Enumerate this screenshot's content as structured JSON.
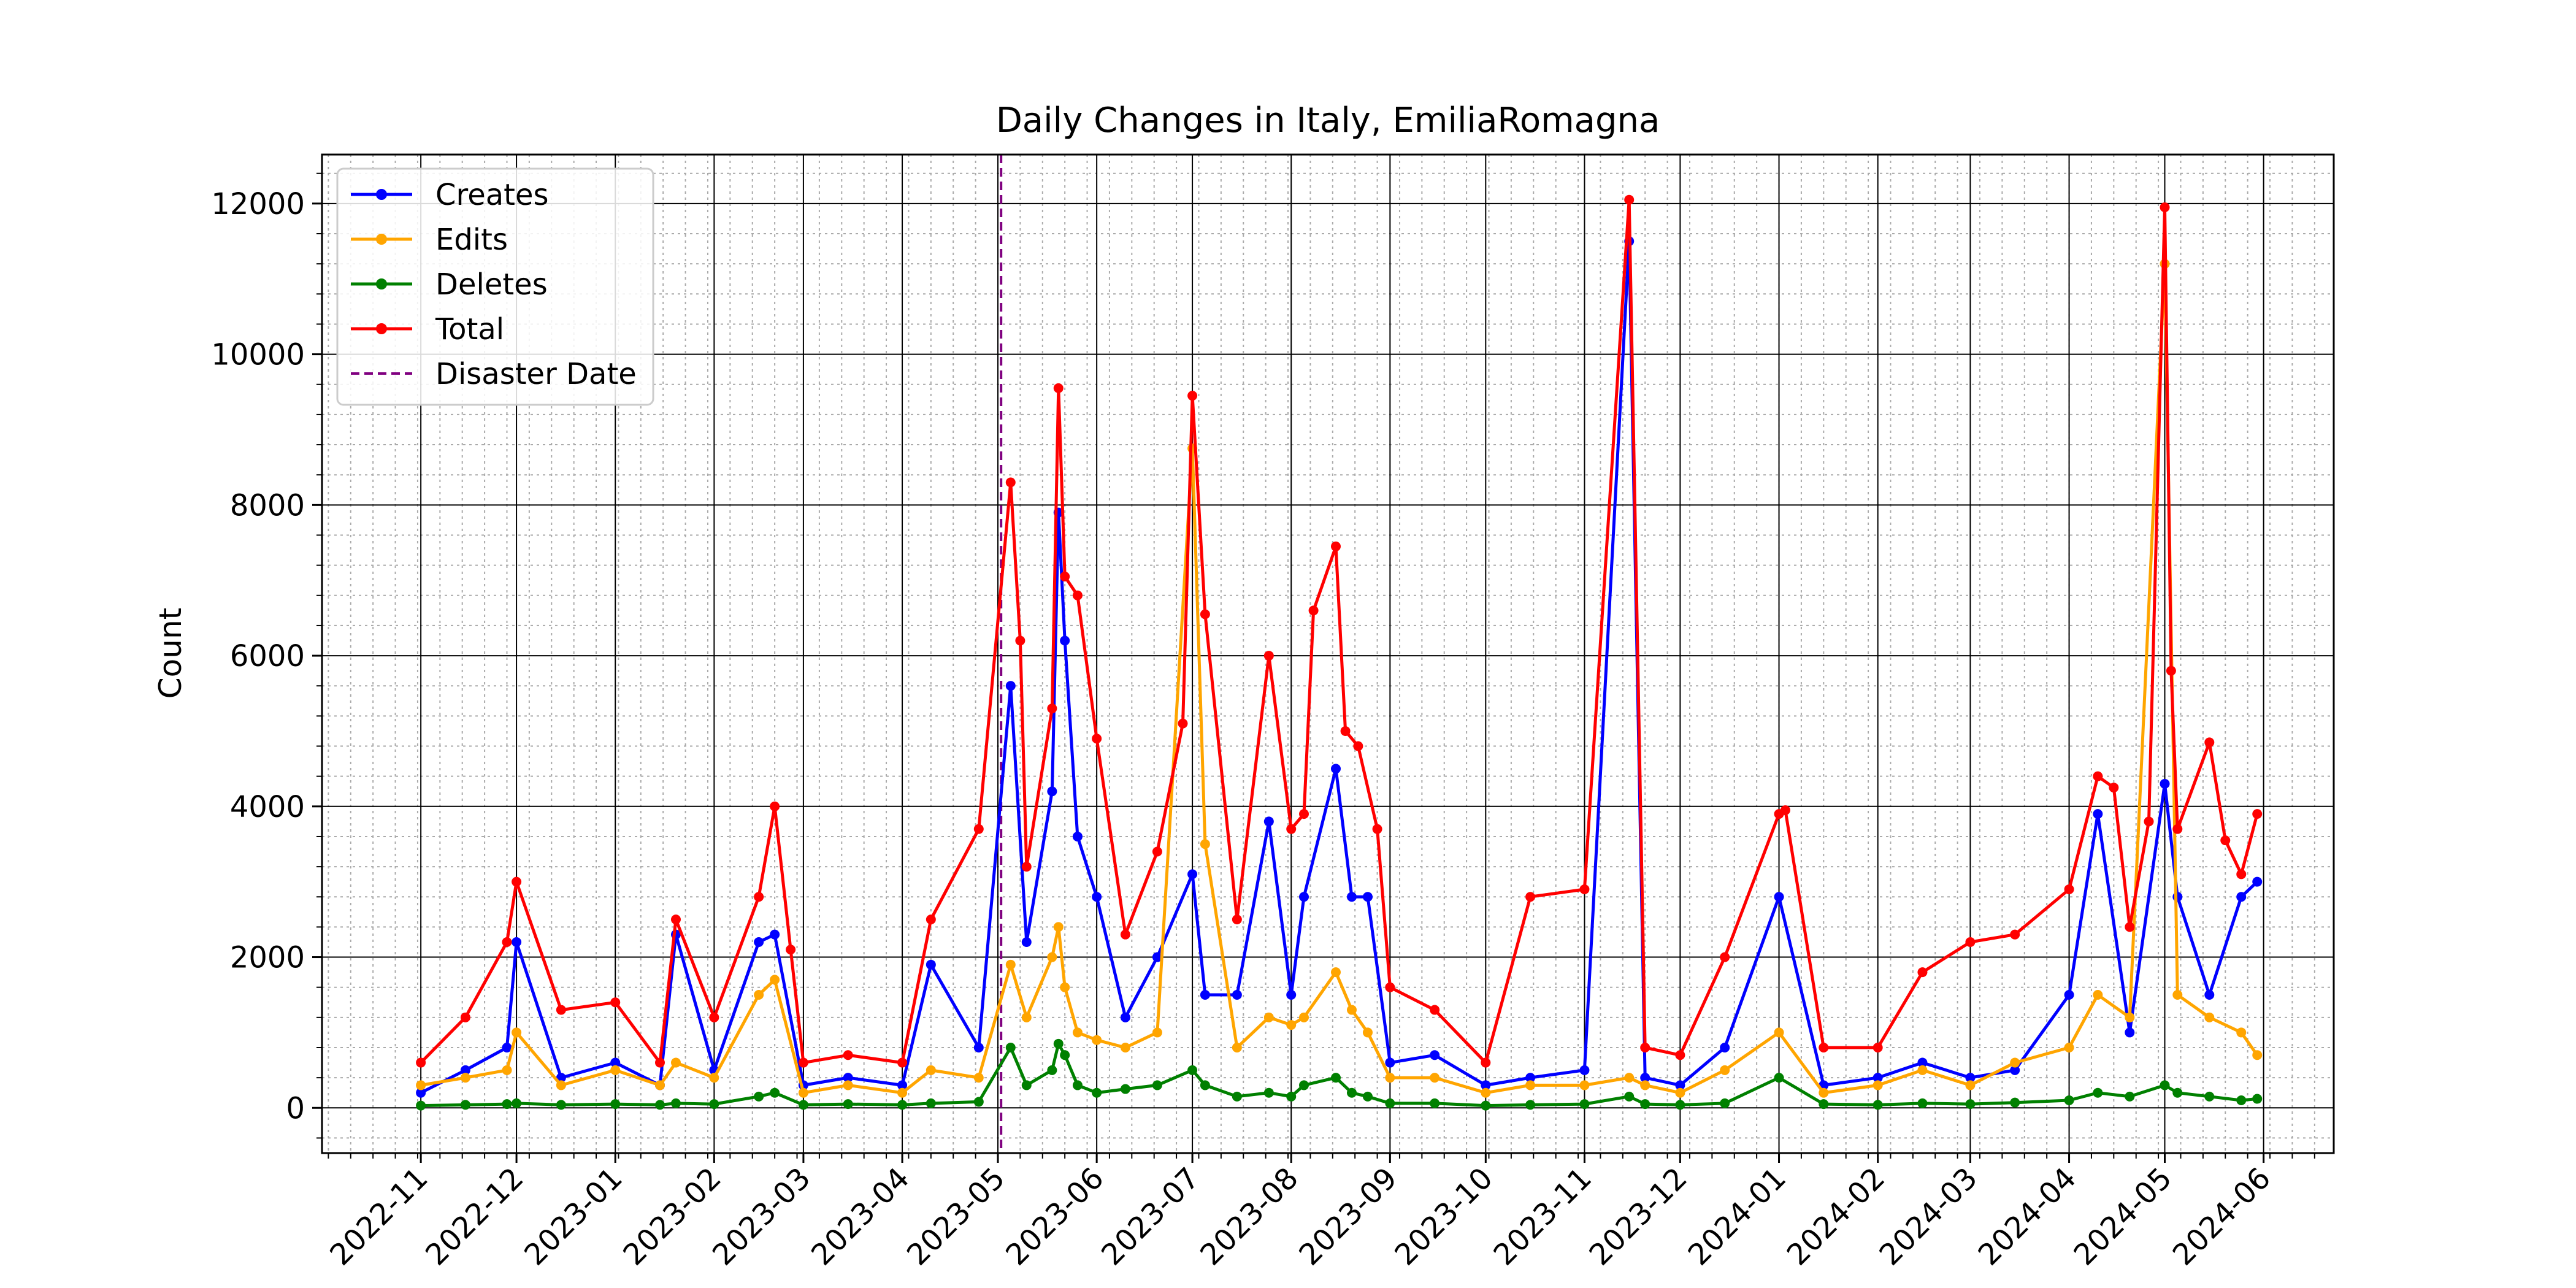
{
  "chart_data": {
    "type": "line",
    "title": "Daily Changes in Italy, EmiliaRomagna",
    "xlabel": "",
    "ylabel": "Count",
    "x_range": [
      "2022-10-01",
      "2024-06-23"
    ],
    "ylim": [
      -600,
      12650
    ],
    "yticks": [
      0,
      2000,
      4000,
      6000,
      8000,
      10000,
      12000
    ],
    "xticks": [
      "2022-11",
      "2022-12",
      "2023-01",
      "2023-02",
      "2023-03",
      "2023-04",
      "2023-05",
      "2023-06",
      "2023-07",
      "2023-08",
      "2023-09",
      "2023-10",
      "2023-11",
      "2023-12",
      "2024-01",
      "2024-02",
      "2024-03",
      "2024-04",
      "2024-05",
      "2024-06"
    ],
    "grid": true,
    "legend_position": "top-left",
    "disaster_date": "2023-05-02",
    "series": [
      {
        "name": "Creates",
        "color": "#0000ff",
        "points": [
          [
            "2022-11-01",
            200
          ],
          [
            "2022-11-15",
            500
          ],
          [
            "2022-11-28",
            800
          ],
          [
            "2022-12-01",
            2200
          ],
          [
            "2022-12-15",
            400
          ],
          [
            "2023-01-01",
            600
          ],
          [
            "2023-01-15",
            300
          ],
          [
            "2023-01-20",
            2300
          ],
          [
            "2023-02-01",
            500
          ],
          [
            "2023-02-15",
            2200
          ],
          [
            "2023-02-20",
            2300
          ],
          [
            "2023-03-01",
            300
          ],
          [
            "2023-03-15",
            400
          ],
          [
            "2023-04-01",
            300
          ],
          [
            "2023-04-10",
            1900
          ],
          [
            "2023-04-25",
            800
          ],
          [
            "2023-05-05",
            5600
          ],
          [
            "2023-05-10",
            2200
          ],
          [
            "2023-05-18",
            4200
          ],
          [
            "2023-05-20",
            7900
          ],
          [
            "2023-05-22",
            6200
          ],
          [
            "2023-05-26",
            3600
          ],
          [
            "2023-06-01",
            2800
          ],
          [
            "2023-06-10",
            1200
          ],
          [
            "2023-06-20",
            2000
          ],
          [
            "2023-07-01",
            3100
          ],
          [
            "2023-07-05",
            1500
          ],
          [
            "2023-07-15",
            1500
          ],
          [
            "2023-07-25",
            3800
          ],
          [
            "2023-08-01",
            1500
          ],
          [
            "2023-08-05",
            2800
          ],
          [
            "2023-08-15",
            4500
          ],
          [
            "2023-08-20",
            2800
          ],
          [
            "2023-08-25",
            2800
          ],
          [
            "2023-09-01",
            600
          ],
          [
            "2023-09-15",
            700
          ],
          [
            "2023-10-01",
            300
          ],
          [
            "2023-10-15",
            400
          ],
          [
            "2023-11-01",
            500
          ],
          [
            "2023-11-15",
            11500
          ],
          [
            "2023-11-20",
            400
          ],
          [
            "2023-12-01",
            300
          ],
          [
            "2023-12-15",
            800
          ],
          [
            "2024-01-01",
            2800
          ],
          [
            "2024-01-15",
            300
          ],
          [
            "2024-02-01",
            400
          ],
          [
            "2024-02-15",
            600
          ],
          [
            "2024-03-01",
            400
          ],
          [
            "2024-03-15",
            500
          ],
          [
            "2024-04-01",
            1500
          ],
          [
            "2024-04-10",
            3900
          ],
          [
            "2024-04-20",
            1000
          ],
          [
            "2024-05-01",
            4300
          ],
          [
            "2024-05-05",
            2800
          ],
          [
            "2024-05-15",
            1500
          ],
          [
            "2024-05-25",
            2800
          ],
          [
            "2024-05-30",
            3000
          ]
        ]
      },
      {
        "name": "Edits",
        "color": "#ffa500",
        "points": [
          [
            "2022-11-01",
            300
          ],
          [
            "2022-11-15",
            400
          ],
          [
            "2022-11-28",
            500
          ],
          [
            "2022-12-01",
            1000
          ],
          [
            "2022-12-15",
            300
          ],
          [
            "2023-01-01",
            500
          ],
          [
            "2023-01-15",
            300
          ],
          [
            "2023-01-20",
            600
          ],
          [
            "2023-02-01",
            400
          ],
          [
            "2023-02-15",
            1500
          ],
          [
            "2023-02-20",
            1700
          ],
          [
            "2023-03-01",
            200
          ],
          [
            "2023-03-15",
            300
          ],
          [
            "2023-04-01",
            200
          ],
          [
            "2023-04-10",
            500
          ],
          [
            "2023-04-25",
            400
          ],
          [
            "2023-05-05",
            1900
          ],
          [
            "2023-05-10",
            1200
          ],
          [
            "2023-05-18",
            2000
          ],
          [
            "2023-05-20",
            2400
          ],
          [
            "2023-05-22",
            1600
          ],
          [
            "2023-05-26",
            1000
          ],
          [
            "2023-06-01",
            900
          ],
          [
            "2023-06-10",
            800
          ],
          [
            "2023-06-20",
            1000
          ],
          [
            "2023-07-01",
            8750
          ],
          [
            "2023-07-05",
            3500
          ],
          [
            "2023-07-15",
            800
          ],
          [
            "2023-07-25",
            1200
          ],
          [
            "2023-08-01",
            1100
          ],
          [
            "2023-08-05",
            1200
          ],
          [
            "2023-08-15",
            1800
          ],
          [
            "2023-08-20",
            1300
          ],
          [
            "2023-08-25",
            1000
          ],
          [
            "2023-09-01",
            400
          ],
          [
            "2023-09-15",
            400
          ],
          [
            "2023-10-01",
            200
          ],
          [
            "2023-10-15",
            300
          ],
          [
            "2023-11-01",
            300
          ],
          [
            "2023-11-15",
            400
          ],
          [
            "2023-11-20",
            300
          ],
          [
            "2023-12-01",
            200
          ],
          [
            "2023-12-15",
            500
          ],
          [
            "2024-01-01",
            1000
          ],
          [
            "2024-01-15",
            200
          ],
          [
            "2024-02-01",
            300
          ],
          [
            "2024-02-15",
            500
          ],
          [
            "2024-03-01",
            300
          ],
          [
            "2024-03-15",
            600
          ],
          [
            "2024-04-01",
            800
          ],
          [
            "2024-04-10",
            1500
          ],
          [
            "2024-04-20",
            1200
          ],
          [
            "2024-05-01",
            11200
          ],
          [
            "2024-05-05",
            1500
          ],
          [
            "2024-05-15",
            1200
          ],
          [
            "2024-05-25",
            1000
          ],
          [
            "2024-05-30",
            700
          ]
        ]
      },
      {
        "name": "Deletes",
        "color": "#008000",
        "points": [
          [
            "2022-11-01",
            30
          ],
          [
            "2022-11-15",
            40
          ],
          [
            "2022-11-28",
            50
          ],
          [
            "2022-12-01",
            60
          ],
          [
            "2022-12-15",
            40
          ],
          [
            "2023-01-01",
            50
          ],
          [
            "2023-01-15",
            40
          ],
          [
            "2023-01-20",
            60
          ],
          [
            "2023-02-01",
            50
          ],
          [
            "2023-02-15",
            150
          ],
          [
            "2023-02-20",
            200
          ],
          [
            "2023-03-01",
            40
          ],
          [
            "2023-03-15",
            50
          ],
          [
            "2023-04-01",
            40
          ],
          [
            "2023-04-10",
            60
          ],
          [
            "2023-04-25",
            80
          ],
          [
            "2023-05-05",
            800
          ],
          [
            "2023-05-10",
            300
          ],
          [
            "2023-05-18",
            500
          ],
          [
            "2023-05-20",
            850
          ],
          [
            "2023-05-22",
            700
          ],
          [
            "2023-05-26",
            300
          ],
          [
            "2023-06-01",
            200
          ],
          [
            "2023-06-10",
            250
          ],
          [
            "2023-06-20",
            300
          ],
          [
            "2023-07-01",
            500
          ],
          [
            "2023-07-05",
            300
          ],
          [
            "2023-07-15",
            150
          ],
          [
            "2023-07-25",
            200
          ],
          [
            "2023-08-01",
            150
          ],
          [
            "2023-08-05",
            300
          ],
          [
            "2023-08-15",
            400
          ],
          [
            "2023-08-20",
            200
          ],
          [
            "2023-08-25",
            150
          ],
          [
            "2023-09-01",
            60
          ],
          [
            "2023-09-15",
            60
          ],
          [
            "2023-10-01",
            30
          ],
          [
            "2023-10-15",
            40
          ],
          [
            "2023-11-01",
            50
          ],
          [
            "2023-11-15",
            150
          ],
          [
            "2023-11-20",
            50
          ],
          [
            "2023-12-01",
            40
          ],
          [
            "2023-12-15",
            60
          ],
          [
            "2024-01-01",
            400
          ],
          [
            "2024-01-15",
            50
          ],
          [
            "2024-02-01",
            40
          ],
          [
            "2024-02-15",
            60
          ],
          [
            "2024-03-01",
            50
          ],
          [
            "2024-03-15",
            70
          ],
          [
            "2024-04-01",
            100
          ],
          [
            "2024-04-10",
            200
          ],
          [
            "2024-04-20",
            150
          ],
          [
            "2024-05-01",
            300
          ],
          [
            "2024-05-05",
            200
          ],
          [
            "2024-05-15",
            150
          ],
          [
            "2024-05-25",
            100
          ],
          [
            "2024-05-30",
            120
          ]
        ]
      },
      {
        "name": "Total",
        "color": "#ff0000",
        "points": [
          [
            "2022-11-01",
            600
          ],
          [
            "2022-11-15",
            1200
          ],
          [
            "2022-11-28",
            2200
          ],
          [
            "2022-12-01",
            3000
          ],
          [
            "2022-12-15",
            1300
          ],
          [
            "2023-01-01",
            1400
          ],
          [
            "2023-01-15",
            600
          ],
          [
            "2023-01-20",
            2500
          ],
          [
            "2023-02-01",
            1200
          ],
          [
            "2023-02-15",
            2800
          ],
          [
            "2023-02-20",
            4000
          ],
          [
            "2023-02-25",
            2100
          ],
          [
            "2023-03-01",
            600
          ],
          [
            "2023-03-15",
            700
          ],
          [
            "2023-04-01",
            600
          ],
          [
            "2023-04-10",
            2500
          ],
          [
            "2023-04-25",
            3700
          ],
          [
            "2023-05-05",
            8300
          ],
          [
            "2023-05-08",
            6200
          ],
          [
            "2023-05-10",
            3200
          ],
          [
            "2023-05-18",
            5300
          ],
          [
            "2023-05-20",
            9550
          ],
          [
            "2023-05-22",
            7050
          ],
          [
            "2023-05-26",
            6800
          ],
          [
            "2023-06-01",
            4900
          ],
          [
            "2023-06-10",
            2300
          ],
          [
            "2023-06-20",
            3400
          ],
          [
            "2023-06-28",
            5100
          ],
          [
            "2023-07-01",
            9450
          ],
          [
            "2023-07-05",
            6550
          ],
          [
            "2023-07-15",
            2500
          ],
          [
            "2023-07-25",
            6000
          ],
          [
            "2023-08-01",
            3700
          ],
          [
            "2023-08-05",
            3900
          ],
          [
            "2023-08-08",
            6600
          ],
          [
            "2023-08-15",
            7450
          ],
          [
            "2023-08-18",
            5000
          ],
          [
            "2023-08-22",
            4800
          ],
          [
            "2023-08-28",
            3700
          ],
          [
            "2023-09-01",
            1600
          ],
          [
            "2023-09-15",
            1300
          ],
          [
            "2023-10-01",
            600
          ],
          [
            "2023-10-15",
            2800
          ],
          [
            "2023-11-01",
            2900
          ],
          [
            "2023-11-15",
            12050
          ],
          [
            "2023-11-20",
            800
          ],
          [
            "2023-12-01",
            700
          ],
          [
            "2023-12-15",
            2000
          ],
          [
            "2024-01-01",
            3900
          ],
          [
            "2024-01-03",
            3950
          ],
          [
            "2024-01-15",
            800
          ],
          [
            "2024-02-01",
            800
          ],
          [
            "2024-02-15",
            1800
          ],
          [
            "2024-03-01",
            2200
          ],
          [
            "2024-03-15",
            2300
          ],
          [
            "2024-04-01",
            2900
          ],
          [
            "2024-04-10",
            4400
          ],
          [
            "2024-04-15",
            4250
          ],
          [
            "2024-04-20",
            2400
          ],
          [
            "2024-04-26",
            3800
          ],
          [
            "2024-05-01",
            11950
          ],
          [
            "2024-05-03",
            5800
          ],
          [
            "2024-05-05",
            3700
          ],
          [
            "2024-05-15",
            4850
          ],
          [
            "2024-05-20",
            3550
          ],
          [
            "2024-05-25",
            3100
          ],
          [
            "2024-05-30",
            3900
          ]
        ]
      }
    ],
    "reference_line": {
      "name": "Disaster Date",
      "date": "2023-05-02",
      "color": "#800080",
      "style": "dashed"
    }
  }
}
